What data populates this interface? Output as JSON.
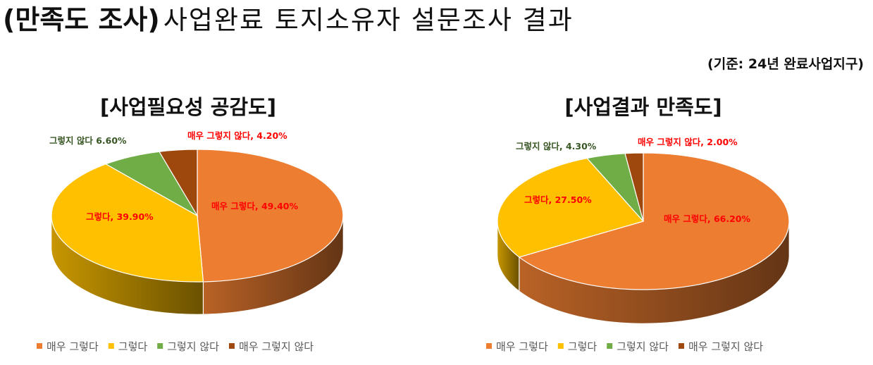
{
  "page": {
    "title_bold": "(만족도 조사)",
    "title_rest": "사업완료 토지소유자 설문조사 결과",
    "basis": "(기준: 24년 완료사업지구)"
  },
  "colors": {
    "very_yes": "#ED7D31",
    "yes": "#FFC000",
    "no": "#70AD47",
    "very_no": "#9E480E",
    "label_red": "#FF0000",
    "label_green": "#375623"
  },
  "chart_data": [
    {
      "type": "pie",
      "style": "3d",
      "title": "[사업필요성 공감도]",
      "slices": [
        {
          "key": "very_yes",
          "name": "매우 그렇다",
          "value": 49.4,
          "label": "매우 그렇다, 49.40%"
        },
        {
          "key": "yes",
          "name": "그렇다",
          "value": 39.9,
          "label": "그렇다, 39.90%"
        },
        {
          "key": "no",
          "name": "그렇지 않다",
          "value": 6.6,
          "label": "그렇지 않다 6.60%"
        },
        {
          "key": "very_no",
          "name": "매우 그렇지 않다",
          "value": 4.2,
          "label": "매우 그렇지 않다, 4.20%"
        }
      ],
      "legend": [
        "매우 그렇다",
        "그렇다",
        "그렇지 않다",
        "매우 그렇지 않다"
      ],
      "legend_position": "bottom"
    },
    {
      "type": "pie",
      "style": "3d",
      "title": "[사업결과 만족도]",
      "slices": [
        {
          "key": "very_yes",
          "name": "매우 그렇다",
          "value": 66.2,
          "label": "매우 그렇다, 66.20%"
        },
        {
          "key": "yes",
          "name": "그렇다",
          "value": 27.5,
          "label": "그렇다, 27.50%"
        },
        {
          "key": "no",
          "name": "그렇지 않다",
          "value": 4.3,
          "label": "그렇지 않다, 4.30%"
        },
        {
          "key": "very_no",
          "name": "매우 그렇지 않다",
          "value": 2.0,
          "label": "매우 그렇지 않다, 2.00%"
        }
      ],
      "legend": [
        "매우 그렇다",
        "그렇다",
        "그렇지 않다",
        "매우 그렇지 않다"
      ],
      "legend_position": "bottom"
    }
  ]
}
